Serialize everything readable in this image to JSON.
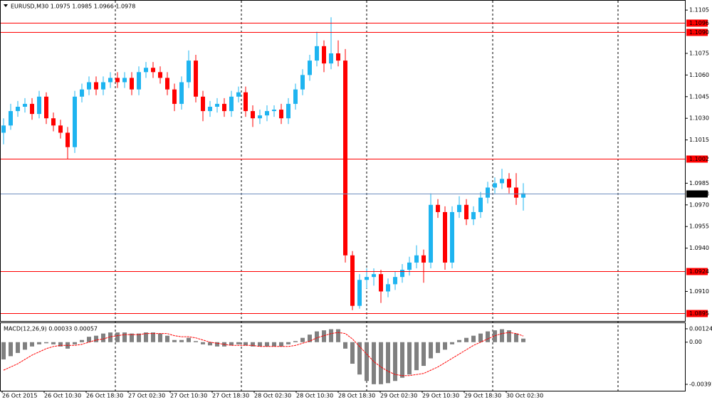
{
  "chart_data": [
    {
      "type": "candlestick",
      "title": "EURUSD,M30  1.0975 1.0985 1.0966 1.0978",
      "open": [
        1.102,
        1.1025,
        1.1035,
        1.1038,
        1.104,
        1.1033,
        1.1045,
        1.103,
        1.1025,
        1.102,
        1.101,
        1.1045,
        1.105,
        1.1055,
        1.105,
        1.1055,
        1.1058,
        1.1055,
        1.1058,
        1.105,
        1.1062,
        1.1065,
        1.1062,
        1.1058,
        1.105,
        1.104,
        1.1055,
        1.107,
        1.1045,
        1.1035,
        1.1038,
        1.104,
        1.1035,
        1.1045,
        1.1048,
        1.1035,
        1.103,
        1.1032,
        1.1035,
        1.1036,
        1.103,
        1.104,
        1.105,
        1.106,
        1.107,
        1.108,
        1.1068,
        1.1075,
        1.107,
        1.0935,
        1.09,
        1.0918,
        1.092,
        1.0922,
        1.091,
        1.0915,
        1.092,
        1.0925,
        1.093,
        1.0935,
        1.093,
        1.097,
        1.0965,
        1.093,
        1.0965,
        1.097,
        1.096,
        1.0965,
        1.0975,
        1.0982,
        1.0985,
        1.0988,
        1.0982,
        1.0975
      ],
      "high": [
        1.103,
        1.104,
        1.1042,
        1.1044,
        1.1044,
        1.1049,
        1.1048,
        1.1034,
        1.1029,
        1.1024,
        1.1049,
        1.1054,
        1.1059,
        1.1059,
        1.1059,
        1.1062,
        1.1062,
        1.1062,
        1.1062,
        1.1066,
        1.1069,
        1.1069,
        1.1066,
        1.1062,
        1.1054,
        1.1059,
        1.1077,
        1.1074,
        1.1049,
        1.1042,
        1.1044,
        1.1044,
        1.1049,
        1.1052,
        1.1052,
        1.1039,
        1.1036,
        1.1039,
        1.1039,
        1.104,
        1.1044,
        1.1054,
        1.1064,
        1.1074,
        1.109,
        1.1084,
        1.11,
        1.1084,
        1.1078,
        1.0938,
        1.0922,
        1.0926,
        1.0926,
        1.0925,
        1.0919,
        1.0924,
        1.0929,
        1.0934,
        1.0942,
        1.0939,
        1.0978,
        1.0974,
        1.0969,
        1.0969,
        1.0976,
        1.0974,
        1.0969,
        1.0979,
        1.0986,
        1.0989,
        1.0995,
        1.0992,
        1.0992,
        1.0985
      ],
      "low": [
        1.1012,
        1.1022,
        1.1031,
        1.1034,
        1.1029,
        1.103,
        1.1026,
        1.1021,
        1.1016,
        1.1002,
        1.1006,
        1.1041,
        1.1046,
        1.1046,
        1.1046,
        1.1051,
        1.1051,
        1.1051,
        1.1046,
        1.1046,
        1.1058,
        1.1058,
        1.1054,
        1.1046,
        1.1035,
        1.1036,
        1.1051,
        1.1041,
        1.1028,
        1.1031,
        1.1034,
        1.1031,
        1.1031,
        1.1041,
        1.1031,
        1.1024,
        1.1026,
        1.1028,
        1.1031,
        1.1026,
        1.1026,
        1.1036,
        1.1046,
        1.1056,
        1.1066,
        1.1062,
        1.1064,
        1.1066,
        1.093,
        1.0897,
        1.0898,
        1.0912,
        1.0914,
        1.0902,
        1.0906,
        1.0911,
        1.0916,
        1.0921,
        1.0926,
        1.0916,
        1.0926,
        1.0961,
        1.0925,
        1.0926,
        1.0961,
        1.0956,
        1.0956,
        1.0961,
        1.0971,
        1.0978,
        1.0981,
        1.0978,
        1.097,
        1.0966
      ],
      "close": [
        1.1025,
        1.1035,
        1.1038,
        1.104,
        1.1033,
        1.1045,
        1.103,
        1.1025,
        1.102,
        1.101,
        1.1045,
        1.105,
        1.1055,
        1.105,
        1.1055,
        1.1058,
        1.1055,
        1.1058,
        1.105,
        1.1062,
        1.1065,
        1.1062,
        1.1058,
        1.105,
        1.104,
        1.1055,
        1.107,
        1.1045,
        1.1035,
        1.1038,
        1.104,
        1.1035,
        1.1045,
        1.1048,
        1.1035,
        1.103,
        1.1032,
        1.1035,
        1.1036,
        1.103,
        1.104,
        1.105,
        1.106,
        1.107,
        1.108,
        1.1068,
        1.1075,
        1.107,
        1.0935,
        1.09,
        1.0918,
        1.092,
        1.0922,
        1.091,
        1.0915,
        1.092,
        1.0925,
        1.093,
        1.0935,
        1.093,
        1.097,
        1.0965,
        1.093,
        1.0965,
        1.097,
        1.096,
        1.0965,
        1.0975,
        1.0982,
        1.0985,
        1.0988,
        1.0982,
        1.0975,
        1.0978
      ],
      "up_color": "#1eb4f0",
      "down_color": "#ff0000",
      "ylim": [
        1.089,
        1.1111
      ],
      "yticks": [
        {
          "value": 1.1105,
          "label": "1.1105"
        },
        {
          "value": 1.1075,
          "label": "1.1075"
        },
        {
          "value": 1.106,
          "label": "1.1060"
        },
        {
          "value": 1.1045,
          "label": "1.1045"
        },
        {
          "value": 1.103,
          "label": "1.1030"
        },
        {
          "value": 1.1015,
          "label": "1.1015"
        },
        {
          "value": 1.0985,
          "label": "1.0985"
        },
        {
          "value": 1.097,
          "label": "1.0970"
        },
        {
          "value": 1.0955,
          "label": "1.0955"
        },
        {
          "value": 1.094,
          "label": "1.0940"
        },
        {
          "value": 1.091,
          "label": "1.0910"
        }
      ],
      "levels": [
        {
          "value": 1.1096,
          "label": "1.1096"
        },
        {
          "value": 1.109,
          "label": "1.1090"
        },
        {
          "value": 1.1002,
          "label": "1.1002"
        },
        {
          "value": 1.0924,
          "label": "1.0924"
        },
        {
          "value": 1.0895,
          "label": "1.0895"
        }
      ],
      "level_color": "#ff0000",
      "last_price": {
        "value": 1.0978,
        "label": "1.0978"
      },
      "last_price_color": "#6f8fbf"
    },
    {
      "type": "macd",
      "title": "MACD(12,26,9) 0.00033 0.00057",
      "values": [
        -0.0016,
        -0.0013,
        -0.001,
        -0.0007,
        -0.0004,
        -0.0002,
        -0.0001,
        -0.0002,
        -0.0004,
        -0.0006,
        -0.0002,
        0.0002,
        0.0005,
        0.0006,
        0.0008,
        0.0009,
        0.0009,
        0.0009,
        0.0008,
        0.0008,
        0.0009,
        0.0009,
        0.0008,
        0.0006,
        0.0002,
        0.0002,
        0.0004,
        0.0001,
        -0.0002,
        -0.0003,
        -0.0004,
        -0.0004,
        -0.0003,
        -0.0002,
        -0.0003,
        -0.0004,
        -0.0004,
        -0.0004,
        -0.0004,
        -0.0004,
        -0.0002,
        0.0001,
        0.0004,
        0.0007,
        0.001,
        0.0011,
        0.0012,
        0.0012,
        -0.0006,
        -0.002,
        -0.003,
        -0.0036,
        -0.0039,
        -0.0039,
        -0.0038,
        -0.0036,
        -0.0033,
        -0.003,
        -0.0026,
        -0.0022,
        -0.0015,
        -0.001,
        -0.0007,
        -0.0002,
        0.0002,
        0.0004,
        0.0006,
        0.0008,
        0.001,
        0.0011,
        0.0012,
        0.0011,
        0.0008,
        0.00033
      ],
      "signal": [
        -0.0026,
        -0.0023,
        -0.002,
        -0.0016,
        -0.0012,
        -0.0009,
        -0.0006,
        -0.0004,
        -0.0003,
        -0.0003,
        -0.0003,
        -0.0002,
        0.0,
        0.0002,
        0.0003,
        0.0005,
        0.0006,
        0.0007,
        0.0007,
        0.0007,
        0.0008,
        0.0008,
        0.0008,
        0.0008,
        0.0006,
        0.0005,
        0.0005,
        0.0004,
        0.0002,
        0.0,
        -0.0001,
        -0.0002,
        -0.0003,
        -0.0003,
        -0.0003,
        -0.0003,
        -0.0004,
        -0.0004,
        -0.0004,
        -0.0004,
        -0.0004,
        -0.0003,
        -0.0001,
        0.0001,
        0.0004,
        0.0006,
        0.0008,
        0.0009,
        0.0008,
        0.0003,
        -0.0004,
        -0.0011,
        -0.0018,
        -0.0023,
        -0.0027,
        -0.003,
        -0.0031,
        -0.0031,
        -0.003,
        -0.0029,
        -0.0026,
        -0.0023,
        -0.0019,
        -0.0015,
        -0.0011,
        -0.0007,
        -0.0003,
        0.0,
        0.0003,
        0.0006,
        0.0008,
        0.0009,
        0.0008,
        0.00057
      ],
      "color": "#808080",
      "signal_color": "#ff0000",
      "ylim": [
        -0.00444,
        0.0017
      ],
      "yticks": [
        {
          "value": 0.00124,
          "label": "0.00124"
        },
        {
          "value": 0,
          "label": "0.00"
        },
        {
          "value": -0.00391,
          "label": "-0.00391"
        }
      ],
      "x_labels": [
        "26 Oct 2015",
        "26 Oct 10:30",
        "26 Oct 18:30",
        "27 Oct 02:30",
        "27 Oct 10:30",
        "27 Oct 18:30",
        "28 Oct 02:30",
        "28 Oct 10:30",
        "28 Oct 18:30",
        "29 Oct 02:30",
        "29 Oct 10:30",
        "29 Oct 18:30",
        "30 Oct 02:30"
      ]
    }
  ]
}
